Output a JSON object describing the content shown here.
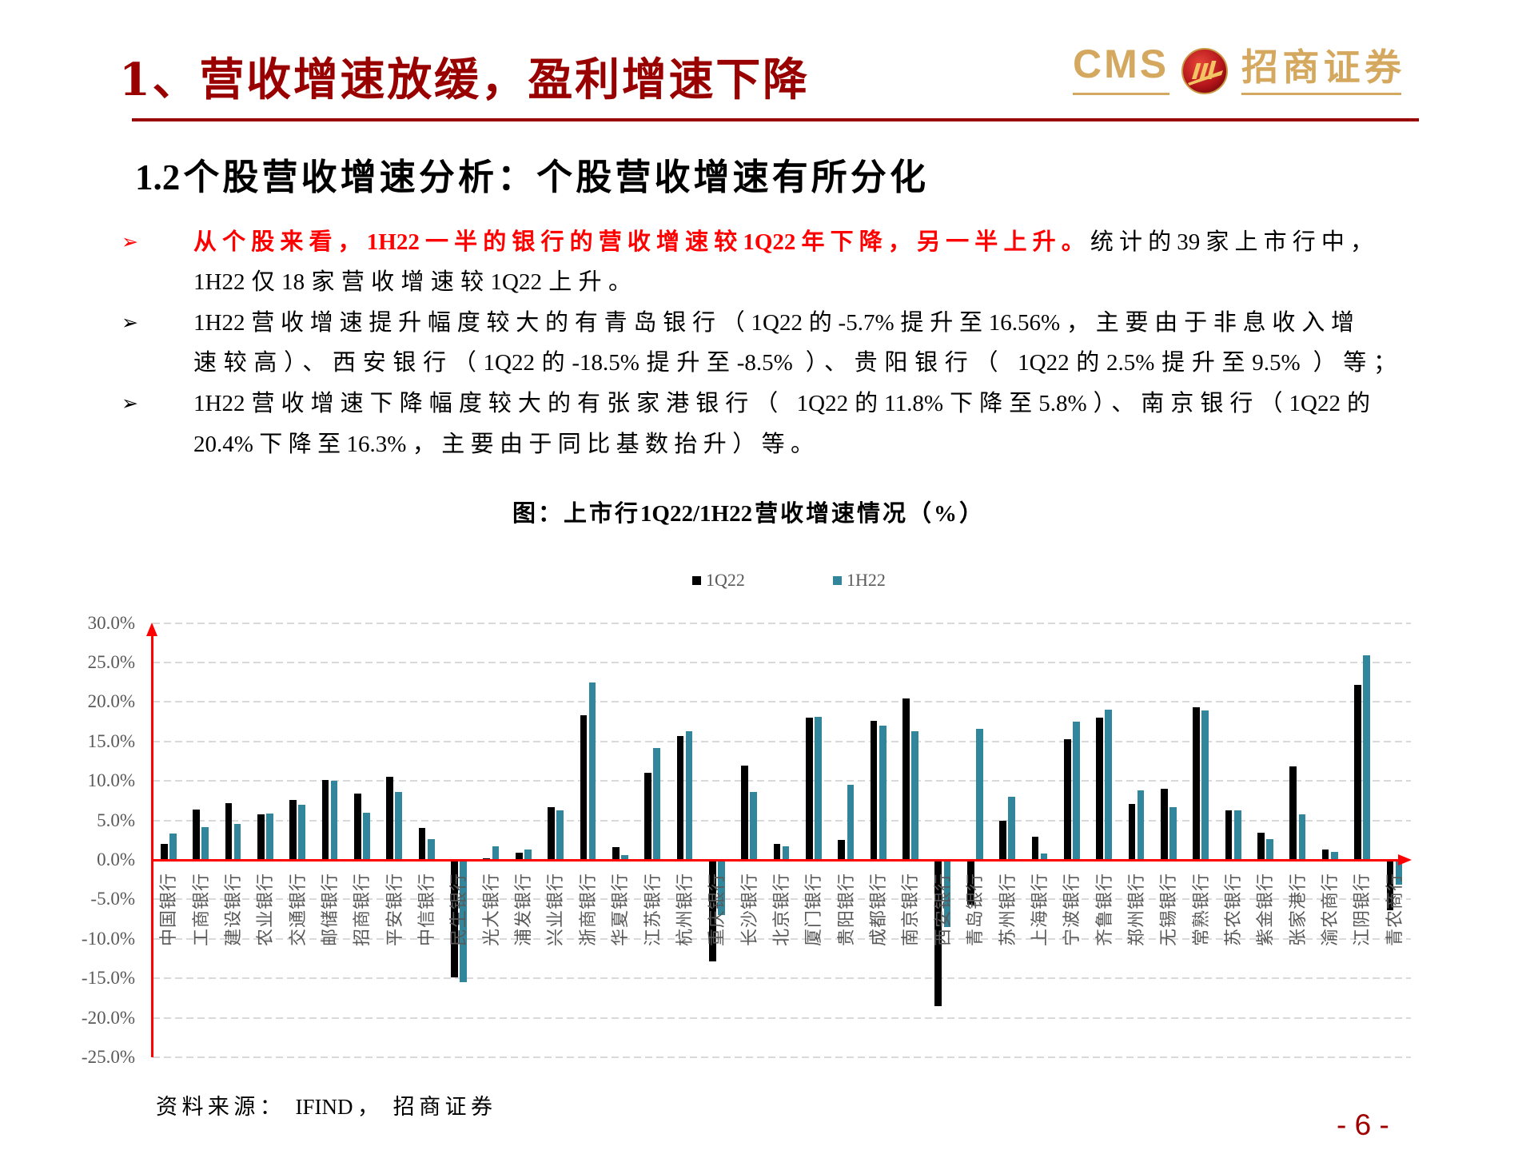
{
  "header": {
    "title": "1、营收增速放缓，盈利增速下降",
    "logo": {
      "latin": "CMS",
      "chinese": "招商证券",
      "emblem_icon": "cms-emblem-icon"
    }
  },
  "section": {
    "heading": "1.2个股营收增速分析：个股营收增速有所分化"
  },
  "bullets": [
    {
      "icon": "arrow-bullet-icon",
      "glyph": "➢",
      "glyph_color": "#ff0000",
      "lines": [
        {
          "highlight": "从个股来看，1H22一半的银行的营收增速较1Q22年下降，另一半上升。",
          "text": "统计的39家上市行中，"
        },
        {
          "text": "1H22仅18家营收增速较1Q22上升。"
        }
      ]
    },
    {
      "icon": "arrow-bullet-icon",
      "glyph": "➢",
      "glyph_color": "#000000",
      "lines": [
        {
          "text": "1H22营收增速提升幅度较大的有青岛银行（1Q22的-5.7%提升至16.56%，主要由于非息收入增"
        },
        {
          "text": "速较高）、西安银行（1Q22的-18.5%提升至-8.5% ）、贵阳银行（ 1Q22的2.5%提升至9.5% ）等；"
        }
      ]
    },
    {
      "icon": "arrow-bullet-icon",
      "glyph": "➢",
      "glyph_color": "#000000",
      "lines": [
        {
          "text": "1H22营收增速下降幅度较大的有张家港银行（ 1Q22的11.8%下降至5.8%）、南京银行（1Q22的"
        },
        {
          "text": "20.4%下降至16.3%，主要由于同比基数抬升）等。"
        }
      ]
    }
  ],
  "figure": {
    "source": "资料来源： IFIND， 招商证券"
  },
  "footer": {
    "page_number": "- 6 -"
  },
  "colors": {
    "title": "#990000",
    "highlight": "#ff0000",
    "logo_gold": "#d4a85f",
    "axis": "#ff0000",
    "gridline": "#d9d9d9",
    "tick_label": "#595959",
    "page_number": "#a00000"
  },
  "chart_data": {
    "type": "bar",
    "title": "图：上市行1Q22/1H22营收增速情况（%）",
    "xlabel": "",
    "ylabel": "",
    "ylim": [
      -25,
      30
    ],
    "yticks": [
      30,
      25,
      20,
      15,
      10,
      5,
      0,
      -5,
      -10,
      -15,
      -20,
      -25
    ],
    "ytick_labels": [
      "30.0%",
      "25.0%",
      "20.0%",
      "15.0%",
      "10.0%",
      "5.0%",
      "0.0%",
      "-5.0%",
      "-10.0%",
      "-15.0%",
      "-20.0%",
      "-25.0%"
    ],
    "grid": true,
    "legend_position": "top",
    "categories": [
      "中国银行",
      "工商银行",
      "建设银行",
      "农业银行",
      "交通银行",
      "邮储银行",
      "招商银行",
      "平安银行",
      "中信银行",
      "民生银行",
      "光大银行",
      "浦发银行",
      "兴业银行",
      "浙商银行",
      "华夏银行",
      "江苏银行",
      "杭州银行",
      "重庆银行",
      "长沙银行",
      "北京银行",
      "厦门银行",
      "贵阳银行",
      "成都银行",
      "南京银行",
      "西安银行",
      "青岛银行",
      "苏州银行",
      "上海银行",
      "宁波银行",
      "齐鲁银行",
      "郑州银行",
      "无锡银行",
      "常熟银行",
      "苏农银行",
      "紫金银行",
      "张家港行",
      "渝农商行",
      "江阴银行",
      "青农商行"
    ],
    "series": [
      {
        "name": "1Q22",
        "color": "#000000",
        "values": [
          2.0,
          6.4,
          7.2,
          5.8,
          7.6,
          10.1,
          8.4,
          10.5,
          4.0,
          -14.9,
          0.2,
          0.9,
          6.7,
          18.3,
          1.6,
          11.0,
          15.7,
          -12.9,
          11.9,
          2.0,
          18.0,
          2.5,
          17.6,
          20.4,
          -18.5,
          -5.7,
          5.0,
          2.9,
          15.3,
          18.0,
          7.1,
          9.0,
          19.3,
          6.3,
          3.4,
          11.8,
          1.3,
          22.2,
          -6.4
        ]
      },
      {
        "name": "1H22",
        "color": "#31869b",
        "values": [
          3.3,
          4.1,
          4.6,
          5.9,
          7.0,
          10.0,
          6.0,
          8.6,
          2.6,
          -15.5,
          1.7,
          1.3,
          6.3,
          22.5,
          0.6,
          14.2,
          16.3,
          -7.0,
          8.6,
          1.7,
          18.1,
          9.5,
          17.0,
          16.3,
          -8.5,
          16.56,
          8.0,
          0.8,
          17.5,
          19.0,
          8.8,
          6.7,
          18.9,
          6.3,
          2.6,
          5.8,
          1.0,
          25.9,
          -3.1
        ]
      }
    ]
  }
}
